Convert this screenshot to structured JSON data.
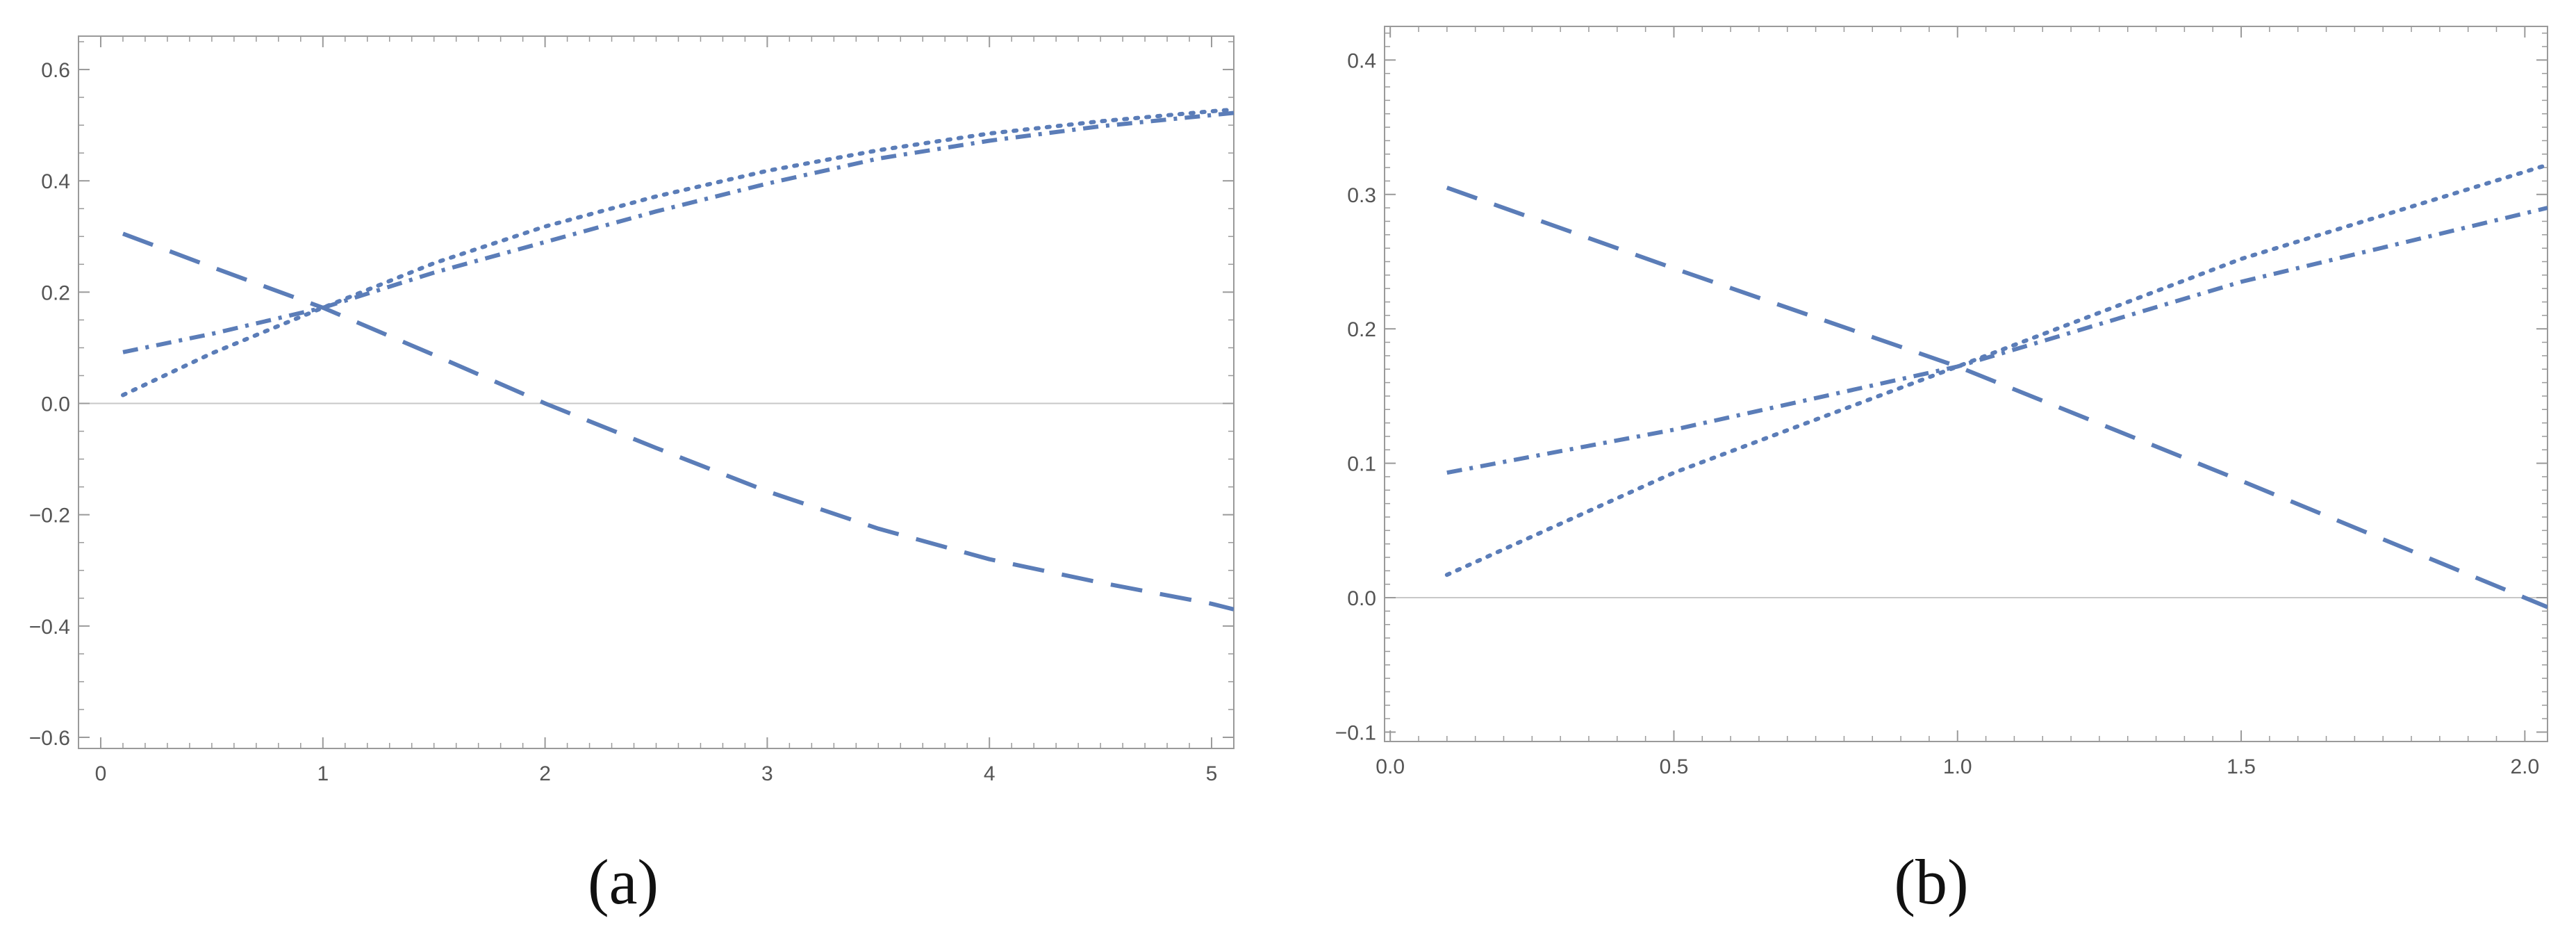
{
  "figure": {
    "panels": [
      {
        "caption": "(a)"
      },
      {
        "caption": "(b)"
      }
    ]
  },
  "style": {
    "series_color": "#5b7db8",
    "frame_color": "#9a9a9a",
    "zero_line_color": "#c8c8c8",
    "tick_label_color": "#555555"
  },
  "chart_data": [
    {
      "type": "line",
      "title": "",
      "xlabel": "",
      "ylabel": "",
      "xlim": [
        -0.1,
        5.1
      ],
      "ylim": [
        -0.62,
        0.66
      ],
      "grid": false,
      "legend": "none",
      "x_ticks": [
        0,
        1,
        2,
        3,
        4,
        5
      ],
      "x_tick_labels": [
        "0",
        "1",
        "2",
        "3",
        "4",
        "5"
      ],
      "y_ticks": [
        -0.6,
        -0.4,
        -0.2,
        0.0,
        0.2,
        0.4,
        0.6
      ],
      "y_tick_labels": [
        "-0.6",
        "-0.4",
        "-0.2",
        "0.0",
        "0.2",
        "0.4",
        "0.6"
      ],
      "series": [
        {
          "style": "dashed",
          "x": [
            0.1,
            0.5,
            1.0,
            1.5,
            2.0,
            2.5,
            3.0,
            3.5,
            4.0,
            4.5,
            5.0,
            5.1
          ],
          "y": [
            0.305,
            0.245,
            0.172,
            0.087,
            0.0,
            -0.08,
            -0.158,
            -0.225,
            -0.28,
            -0.322,
            -0.36,
            -0.37
          ]
        },
        {
          "style": "dotted",
          "x": [
            0.1,
            0.5,
            1.0,
            1.5,
            2.0,
            2.5,
            3.0,
            3.5,
            4.0,
            4.5,
            5.0,
            5.1
          ],
          "y": [
            0.015,
            0.09,
            0.172,
            0.252,
            0.318,
            0.372,
            0.418,
            0.455,
            0.485,
            0.507,
            0.525,
            0.528
          ]
        },
        {
          "style": "dashdot",
          "x": [
            0.1,
            0.5,
            1.0,
            1.5,
            2.0,
            2.5,
            3.0,
            3.5,
            4.0,
            4.5,
            5.0,
            5.1
          ],
          "y": [
            0.092,
            0.125,
            0.172,
            0.235,
            0.29,
            0.345,
            0.395,
            0.44,
            0.472,
            0.498,
            0.518,
            0.522
          ]
        }
      ]
    },
    {
      "type": "line",
      "title": "",
      "xlabel": "",
      "ylabel": "",
      "xlim": [
        -0.01,
        2.04
      ],
      "ylim": [
        -0.107,
        0.425
      ],
      "grid": false,
      "legend": "none",
      "x_ticks": [
        0.0,
        0.5,
        1.0,
        1.5,
        2.0
      ],
      "x_tick_labels": [
        "0.0",
        "0.5",
        "1.0",
        "1.5",
        "2.0"
      ],
      "y_ticks": [
        -0.1,
        0.0,
        0.1,
        0.2,
        0.3,
        0.4
      ],
      "y_tick_labels": [
        "-0.1",
        "0.0",
        "0.1",
        "0.2",
        "0.3",
        "0.4"
      ],
      "series": [
        {
          "style": "dashed",
          "x": [
            0.1,
            0.5,
            1.0,
            1.5,
            2.04
          ],
          "y": [
            0.305,
            0.245,
            0.172,
            0.087,
            -0.007
          ]
        },
        {
          "style": "dotted",
          "x": [
            0.1,
            0.5,
            1.0,
            1.5,
            2.04
          ],
          "y": [
            0.017,
            0.093,
            0.172,
            0.252,
            0.322
          ]
        },
        {
          "style": "dashdot",
          "x": [
            0.1,
            0.5,
            1.0,
            1.5,
            2.04
          ],
          "y": [
            0.093,
            0.125,
            0.172,
            0.235,
            0.29
          ]
        }
      ]
    }
  ]
}
